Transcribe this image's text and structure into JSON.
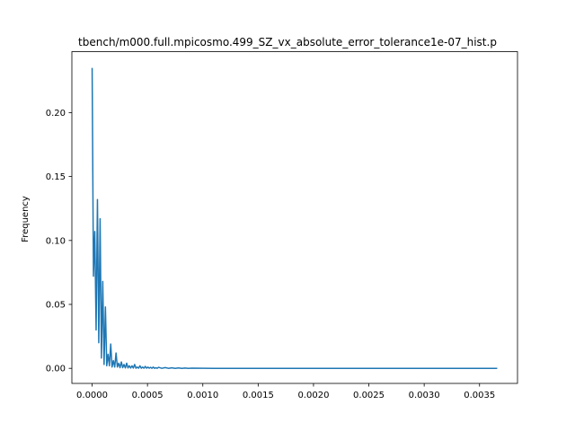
{
  "chart_data": {
    "type": "line",
    "title": "tbench/m000.full.mpicosmo.499_SZ_vx_absolute_error_tolerance1e-07_hist.p",
    "xlabel": "",
    "ylabel": "Frequency",
    "xlim": [
      -0.000183,
      0.003843
    ],
    "ylim": [
      -0.0118,
      0.2477
    ],
    "xticks": [
      0.0,
      0.0005,
      0.001,
      0.0015,
      0.002,
      0.0025,
      0.003,
      0.0035
    ],
    "xtick_labels": [
      "0.0000",
      "0.0005",
      "0.0010",
      "0.0015",
      "0.0020",
      "0.0025",
      "0.0030",
      "0.0035"
    ],
    "yticks": [
      0.0,
      0.05,
      0.1,
      0.15,
      0.2
    ],
    "ytick_labels": [
      "0.00",
      "0.05",
      "0.10",
      "0.15",
      "0.20"
    ],
    "grid": false,
    "color": "#1f77b4",
    "series": [
      {
        "x": [
          0.0,
          1.2e-05,
          2.4e-05,
          3.6e-05,
          4.8e-05,
          6e-05,
          7.2e-05,
          8.4e-05,
          9.6e-05,
          0.000108,
          0.00012,
          0.000132,
          0.000144,
          0.000156,
          0.000168,
          0.00018,
          0.000192,
          0.000204,
          0.000216,
          0.000228,
          0.00024,
          0.000252,
          0.000264,
          0.000276,
          0.000288,
          0.0003,
          0.000312,
          0.000324,
          0.000336,
          0.000348,
          0.00036,
          0.000372,
          0.000384,
          0.000396,
          0.000408,
          0.00042,
          0.000432,
          0.000444,
          0.000456,
          0.000468,
          0.00048,
          0.000492,
          0.000504,
          0.000516,
          0.000528,
          0.00054,
          0.000552,
          0.000564,
          0.000576,
          0.000588,
          0.0006,
          0.00063,
          0.00066,
          0.00069,
          0.00072,
          0.00075,
          0.00078,
          0.00081,
          0.00084,
          0.00087,
          0.0009,
          0.0011,
          0.0015,
          0.002,
          0.0025,
          0.003,
          0.0035,
          0.00366
        ],
        "y": [
          0.235,
          0.072,
          0.107,
          0.03,
          0.132,
          0.02,
          0.117,
          0.008,
          0.068,
          0.003,
          0.048,
          0.002,
          0.011,
          0.002,
          0.019,
          0.001,
          0.006,
          0.001,
          0.012,
          0.001,
          0.004,
          0.0005,
          0.005,
          0.0005,
          0.003,
          0.0003,
          0.004,
          0.0003,
          0.002,
          0.0002,
          0.002,
          0.0002,
          0.003,
          0.0001,
          0.001,
          0.0001,
          0.002,
          0.0001,
          0.001,
          0.0001,
          0.0015,
          0.0001,
          0.001,
          0.0001,
          0.0008,
          0.0,
          0.001,
          0.0,
          0.0005,
          0.0,
          0.0008,
          0.0,
          0.0006,
          0.0,
          0.0004,
          0.0,
          0.0003,
          0.0,
          0.0002,
          0.0,
          0.0001,
          0.0,
          0.0,
          0.0,
          0.0,
          0.0,
          0.0,
          0.0
        ]
      }
    ]
  }
}
